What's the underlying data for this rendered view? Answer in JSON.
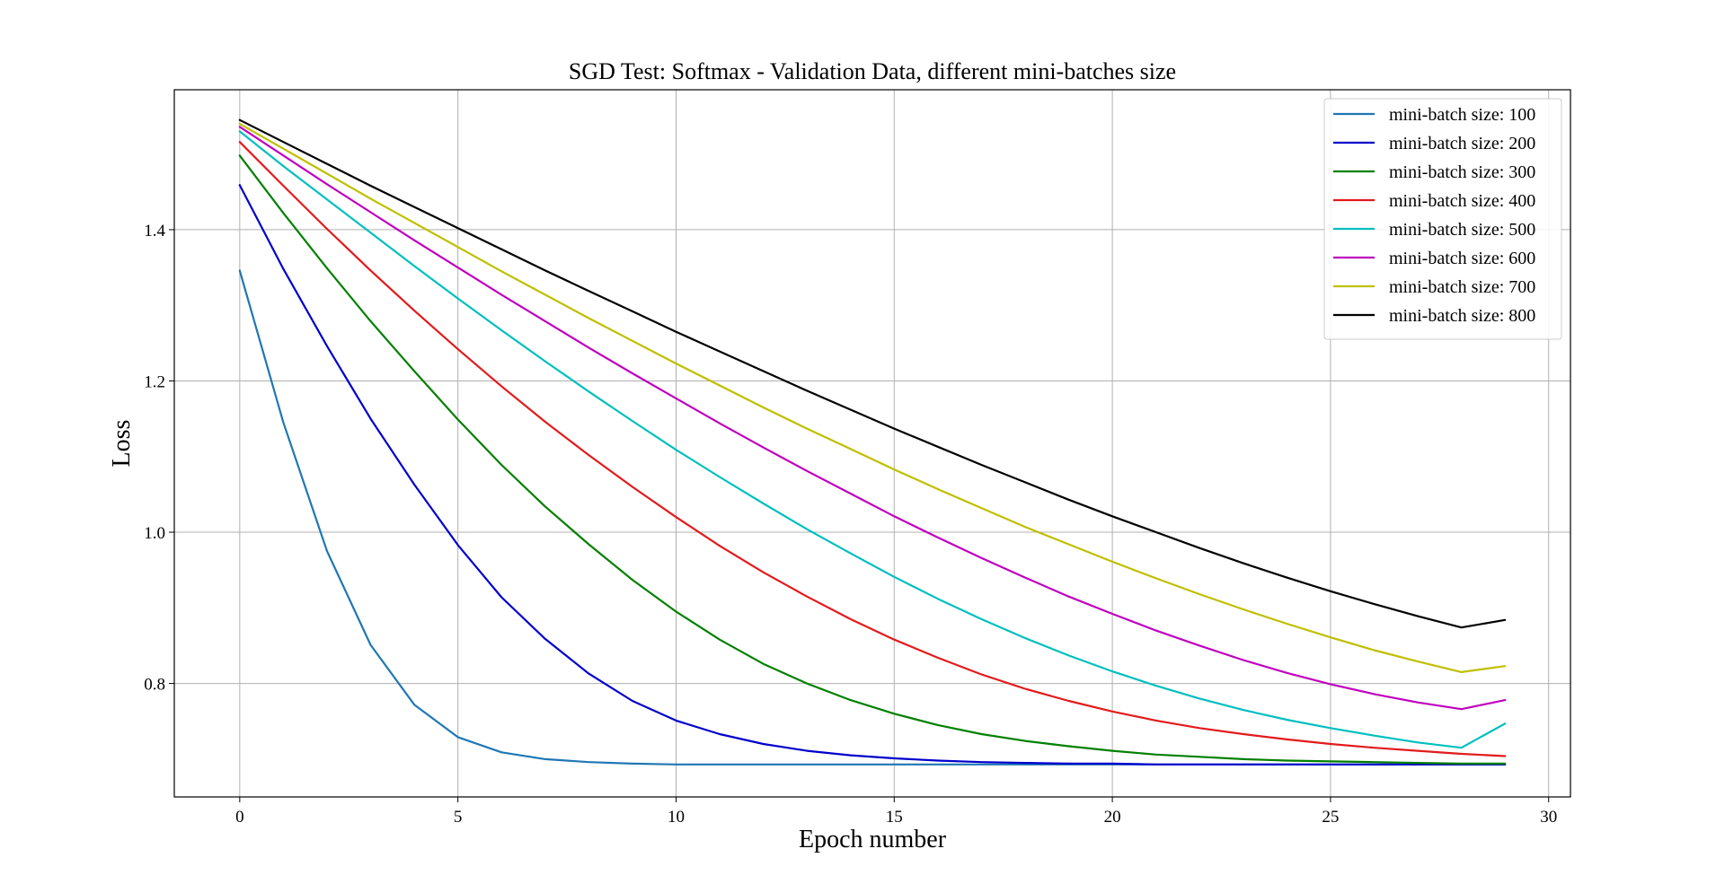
{
  "chart_data": {
    "type": "line",
    "title": "SGD Test: Softmax - Validation Data, different mini-batches size",
    "xlabel": "Epoch number",
    "ylabel": "Loss",
    "xlim": [
      -1.5,
      30.5
    ],
    "ylim": [
      0.65,
      1.585
    ],
    "xticks": [
      0,
      5,
      10,
      15,
      20,
      25,
      30
    ],
    "yticks": [
      0.8,
      1.0,
      1.2,
      1.4
    ],
    "xtick_labels": [
      "0",
      "5",
      "10",
      "15",
      "20",
      "25",
      "30"
    ],
    "ytick_labels": [
      "0.8",
      "1.0",
      "1.2",
      "1.4"
    ],
    "grid": true,
    "legend_position": "top-right",
    "x": [
      0,
      1,
      2,
      3,
      4,
      5,
      6,
      7,
      8,
      9,
      10,
      11,
      12,
      13,
      14,
      15,
      16,
      17,
      18,
      19,
      20,
      21,
      22,
      23,
      24,
      25,
      26,
      27,
      28,
      29
    ],
    "series": [
      {
        "name": "mini-batch size: 100",
        "color": "#1f77b4",
        "values": [
          1.346,
          1.145,
          0.975,
          0.851,
          0.772,
          0.729,
          0.709,
          0.7,
          0.696,
          0.694,
          0.693,
          0.693,
          0.693,
          0.693,
          0.693,
          0.693,
          0.693,
          0.693,
          0.693,
          0.693,
          0.693,
          0.693,
          0.693,
          0.693,
          0.693,
          0.693,
          0.693,
          0.693,
          0.693,
          0.693
        ]
      },
      {
        "name": "mini-batch size: 200",
        "color": "#0000cc",
        "values": [
          1.459,
          1.348,
          1.246,
          1.15,
          1.063,
          0.983,
          0.914,
          0.859,
          0.813,
          0.777,
          0.751,
          0.733,
          0.72,
          0.711,
          0.705,
          0.701,
          0.698,
          0.696,
          0.695,
          0.694,
          0.694,
          0.693,
          0.693,
          0.693,
          0.693,
          0.693,
          0.693,
          0.693,
          0.693,
          0.693
        ]
      },
      {
        "name": "mini-batch size: 300",
        "color": "#008000",
        "values": [
          1.498,
          1.422,
          1.349,
          1.279,
          1.213,
          1.149,
          1.089,
          1.034,
          0.984,
          0.937,
          0.895,
          0.858,
          0.826,
          0.8,
          0.778,
          0.76,
          0.745,
          0.733,
          0.724,
          0.717,
          0.711,
          0.706,
          0.703,
          0.7,
          0.698,
          0.697,
          0.696,
          0.695,
          0.694,
          0.694
        ]
      },
      {
        "name": "mini-batch size: 400",
        "color": "#e31a1c",
        "values": [
          1.516,
          1.458,
          1.401,
          1.346,
          1.293,
          1.242,
          1.193,
          1.146,
          1.102,
          1.06,
          1.02,
          0.982,
          0.947,
          0.915,
          0.885,
          0.858,
          0.834,
          0.812,
          0.793,
          0.777,
          0.763,
          0.751,
          0.741,
          0.733,
          0.726,
          0.72,
          0.715,
          0.711,
          0.707,
          0.704
        ]
      },
      {
        "name": "mini-batch size: 500",
        "color": "#00bfbf",
        "values": [
          1.53,
          1.484,
          1.44,
          1.396,
          1.352,
          1.309,
          1.267,
          1.226,
          1.186,
          1.147,
          1.109,
          1.073,
          1.038,
          1.004,
          0.972,
          0.941,
          0.912,
          0.885,
          0.86,
          0.837,
          0.816,
          0.797,
          0.78,
          0.765,
          0.752,
          0.741,
          0.731,
          0.722,
          0.715,
          0.747
        ]
      },
      {
        "name": "mini-batch size: 600",
        "color": "#bf00bf",
        "values": [
          1.536,
          1.498,
          1.46,
          1.423,
          1.386,
          1.35,
          1.314,
          1.279,
          1.244,
          1.21,
          1.177,
          1.144,
          1.112,
          1.081,
          1.051,
          1.021,
          0.993,
          0.966,
          0.94,
          0.915,
          0.892,
          0.87,
          0.85,
          0.831,
          0.814,
          0.799,
          0.786,
          0.775,
          0.766,
          0.778
        ]
      },
      {
        "name": "mini-batch size: 700",
        "color": "#bfbf00",
        "values": [
          1.54,
          1.507,
          1.474,
          1.441,
          1.409,
          1.377,
          1.345,
          1.314,
          1.283,
          1.253,
          1.223,
          1.194,
          1.165,
          1.137,
          1.11,
          1.083,
          1.057,
          1.032,
          1.007,
          0.984,
          0.961,
          0.939,
          0.918,
          0.898,
          0.879,
          0.861,
          0.844,
          0.829,
          0.815,
          0.823
        ]
      },
      {
        "name": "mini-batch size: 800",
        "color": "#000000",
        "values": [
          1.545,
          1.516,
          1.487,
          1.458,
          1.43,
          1.402,
          1.374,
          1.346,
          1.319,
          1.292,
          1.265,
          1.239,
          1.213,
          1.187,
          1.162,
          1.137,
          1.113,
          1.089,
          1.066,
          1.043,
          1.021,
          1.0,
          0.979,
          0.959,
          0.94,
          0.922,
          0.905,
          0.889,
          0.874,
          0.884
        ]
      }
    ]
  }
}
